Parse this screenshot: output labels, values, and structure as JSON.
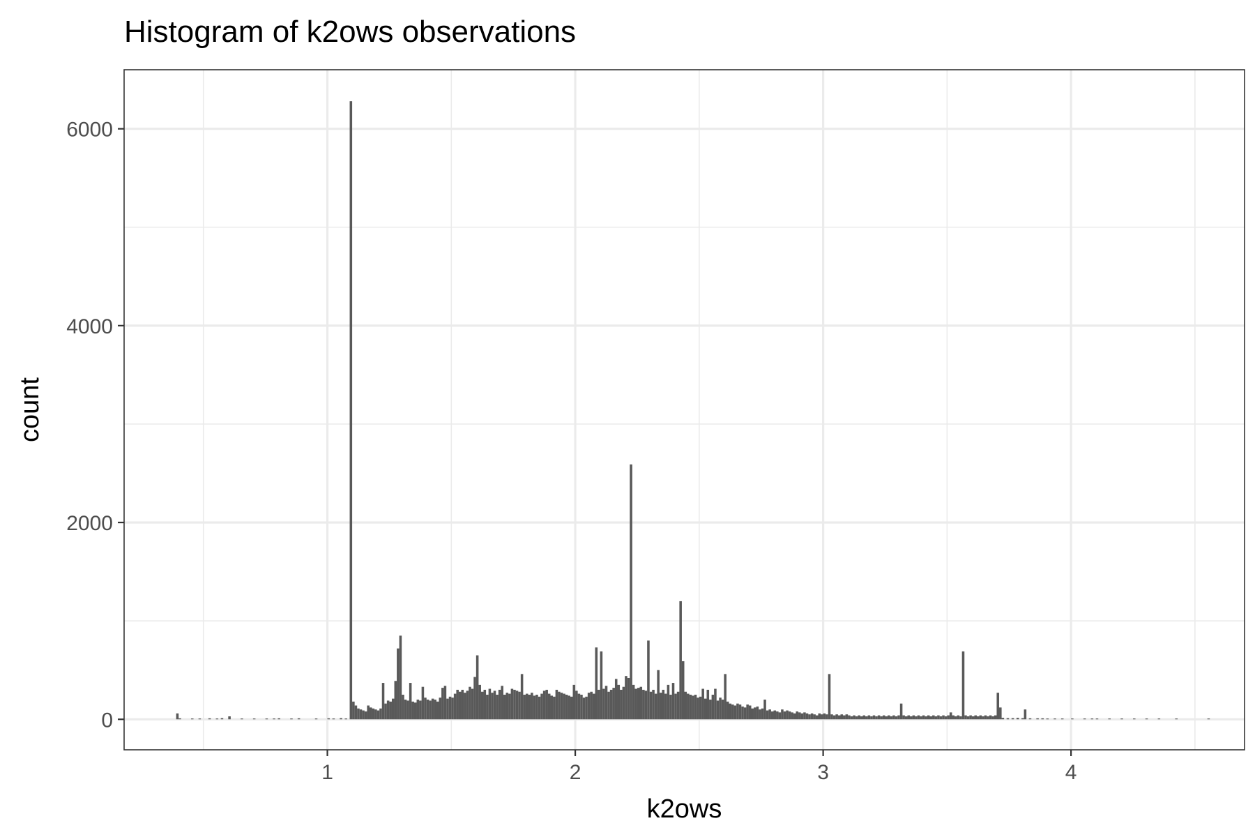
{
  "chart_data": {
    "type": "bar",
    "subtype": "histogram",
    "title": "Histogram of k2ows observations",
    "xlabel": "k2ows",
    "ylabel": "count",
    "xlim": [
      0.18,
      4.7
    ],
    "ylim": [
      -310,
      6600
    ],
    "x_ticks": [
      1,
      2,
      3,
      4
    ],
    "y_ticks": [
      0,
      2000,
      4000,
      6000
    ],
    "x_minor_ticks": [
      0.5,
      1.5,
      2.5,
      3.5,
      4.5
    ],
    "y_minor_ticks": [
      1000,
      3000,
      5000
    ],
    "bin_width": 0.01,
    "bar_color": "#595959",
    "grid": true,
    "bins": [
      [
        0.39,
        60
      ],
      [
        0.4,
        10
      ],
      [
        0.45,
        8
      ],
      [
        0.48,
        8
      ],
      [
        0.52,
        10
      ],
      [
        0.55,
        8
      ],
      [
        0.57,
        12
      ],
      [
        0.6,
        30
      ],
      [
        0.65,
        8
      ],
      [
        0.7,
        8
      ],
      [
        0.75,
        8
      ],
      [
        0.78,
        8
      ],
      [
        0.8,
        10
      ],
      [
        0.85,
        8
      ],
      [
        0.88,
        10
      ],
      [
        0.95,
        8
      ],
      [
        1.0,
        10
      ],
      [
        1.02,
        8
      ],
      [
        1.05,
        12
      ],
      [
        1.07,
        8
      ],
      [
        1.09,
        6280
      ],
      [
        1.1,
        180
      ],
      [
        1.11,
        140
      ],
      [
        1.12,
        110
      ],
      [
        1.13,
        100
      ],
      [
        1.14,
        90
      ],
      [
        1.15,
        80
      ],
      [
        1.16,
        140
      ],
      [
        1.17,
        120
      ],
      [
        1.18,
        110
      ],
      [
        1.19,
        100
      ],
      [
        1.2,
        90
      ],
      [
        1.21,
        110
      ],
      [
        1.22,
        370
      ],
      [
        1.23,
        160
      ],
      [
        1.24,
        190
      ],
      [
        1.25,
        180
      ],
      [
        1.26,
        210
      ],
      [
        1.27,
        390
      ],
      [
        1.28,
        720
      ],
      [
        1.29,
        850
      ],
      [
        1.3,
        250
      ],
      [
        1.31,
        200
      ],
      [
        1.32,
        190
      ],
      [
        1.33,
        370
      ],
      [
        1.34,
        180
      ],
      [
        1.35,
        170
      ],
      [
        1.36,
        200
      ],
      [
        1.37,
        190
      ],
      [
        1.38,
        330
      ],
      [
        1.39,
        220
      ],
      [
        1.4,
        200
      ],
      [
        1.41,
        190
      ],
      [
        1.42,
        210
      ],
      [
        1.43,
        200
      ],
      [
        1.44,
        180
      ],
      [
        1.45,
        220
      ],
      [
        1.46,
        320
      ],
      [
        1.47,
        340
      ],
      [
        1.48,
        210
      ],
      [
        1.49,
        230
      ],
      [
        1.5,
        220
      ],
      [
        1.51,
        260
      ],
      [
        1.52,
        300
      ],
      [
        1.53,
        280
      ],
      [
        1.54,
        300
      ],
      [
        1.55,
        270
      ],
      [
        1.56,
        290
      ],
      [
        1.57,
        330
      ],
      [
        1.58,
        310
      ],
      [
        1.59,
        430
      ],
      [
        1.6,
        650
      ],
      [
        1.61,
        350
      ],
      [
        1.62,
        280
      ],
      [
        1.63,
        300
      ],
      [
        1.64,
        250
      ],
      [
        1.65,
        310
      ],
      [
        1.66,
        270
      ],
      [
        1.67,
        290
      ],
      [
        1.68,
        250
      ],
      [
        1.69,
        300
      ],
      [
        1.7,
        340
      ],
      [
        1.71,
        250
      ],
      [
        1.72,
        270
      ],
      [
        1.73,
        260
      ],
      [
        1.74,
        310
      ],
      [
        1.75,
        300
      ],
      [
        1.76,
        290
      ],
      [
        1.77,
        280
      ],
      [
        1.78,
        460
      ],
      [
        1.79,
        250
      ],
      [
        1.8,
        260
      ],
      [
        1.81,
        250
      ],
      [
        1.82,
        270
      ],
      [
        1.83,
        240
      ],
      [
        1.84,
        250
      ],
      [
        1.85,
        230
      ],
      [
        1.86,
        260
      ],
      [
        1.87,
        290
      ],
      [
        1.88,
        300
      ],
      [
        1.89,
        260
      ],
      [
        1.9,
        240
      ],
      [
        1.91,
        230
      ],
      [
        1.92,
        300
      ],
      [
        1.93,
        280
      ],
      [
        1.94,
        270
      ],
      [
        1.95,
        260
      ],
      [
        1.96,
        250
      ],
      [
        1.97,
        240
      ],
      [
        1.98,
        230
      ],
      [
        1.99,
        350
      ],
      [
        2.0,
        290
      ],
      [
        2.01,
        260
      ],
      [
        2.02,
        250
      ],
      [
        2.03,
        220
      ],
      [
        2.04,
        230
      ],
      [
        2.05,
        270
      ],
      [
        2.06,
        280
      ],
      [
        2.07,
        260
      ],
      [
        2.08,
        730
      ],
      [
        2.09,
        300
      ],
      [
        2.1,
        690
      ],
      [
        2.11,
        310
      ],
      [
        2.12,
        340
      ],
      [
        2.13,
        280
      ],
      [
        2.14,
        300
      ],
      [
        2.15,
        320
      ],
      [
        2.16,
        410
      ],
      [
        2.17,
        350
      ],
      [
        2.18,
        300
      ],
      [
        2.19,
        330
      ],
      [
        2.2,
        440
      ],
      [
        2.21,
        420
      ],
      [
        2.22,
        2590
      ],
      [
        2.23,
        350
      ],
      [
        2.24,
        310
      ],
      [
        2.25,
        320
      ],
      [
        2.26,
        330
      ],
      [
        2.27,
        300
      ],
      [
        2.28,
        290
      ],
      [
        2.29,
        800
      ],
      [
        2.3,
        280
      ],
      [
        2.31,
        300
      ],
      [
        2.32,
        260
      ],
      [
        2.33,
        500
      ],
      [
        2.34,
        270
      ],
      [
        2.35,
        300
      ],
      [
        2.36,
        260
      ],
      [
        2.37,
        350
      ],
      [
        2.38,
        250
      ],
      [
        2.39,
        370
      ],
      [
        2.4,
        260
      ],
      [
        2.41,
        280
      ],
      [
        2.42,
        1200
      ],
      [
        2.43,
        590
      ],
      [
        2.44,
        280
      ],
      [
        2.45,
        260
      ],
      [
        2.46,
        250
      ],
      [
        2.47,
        240
      ],
      [
        2.48,
        250
      ],
      [
        2.49,
        220
      ],
      [
        2.5,
        230
      ],
      [
        2.51,
        310
      ],
      [
        2.52,
        210
      ],
      [
        2.53,
        300
      ],
      [
        2.54,
        200
      ],
      [
        2.55,
        250
      ],
      [
        2.56,
        310
      ],
      [
        2.57,
        190
      ],
      [
        2.58,
        220
      ],
      [
        2.59,
        200
      ],
      [
        2.6,
        460
      ],
      [
        2.61,
        180
      ],
      [
        2.62,
        160
      ],
      [
        2.63,
        150
      ],
      [
        2.64,
        140
      ],
      [
        2.65,
        160
      ],
      [
        2.66,
        150
      ],
      [
        2.67,
        130
      ],
      [
        2.68,
        120
      ],
      [
        2.69,
        150
      ],
      [
        2.7,
        140
      ],
      [
        2.71,
        110
      ],
      [
        2.72,
        120
      ],
      [
        2.73,
        130
      ],
      [
        2.74,
        100
      ],
      [
        2.75,
        110
      ],
      [
        2.76,
        200
      ],
      [
        2.77,
        90
      ],
      [
        2.78,
        100
      ],
      [
        2.79,
        80
      ],
      [
        2.8,
        90
      ],
      [
        2.81,
        80
      ],
      [
        2.82,
        70
      ],
      [
        2.83,
        100
      ],
      [
        2.84,
        80
      ],
      [
        2.85,
        90
      ],
      [
        2.86,
        80
      ],
      [
        2.87,
        70
      ],
      [
        2.88,
        60
      ],
      [
        2.89,
        80
      ],
      [
        2.9,
        70
      ],
      [
        2.91,
        60
      ],
      [
        2.92,
        70
      ],
      [
        2.93,
        60
      ],
      [
        2.94,
        50
      ],
      [
        2.95,
        60
      ],
      [
        2.96,
        50
      ],
      [
        2.97,
        40
      ],
      [
        2.98,
        60
      ],
      [
        2.99,
        50
      ],
      [
        3.0,
        60
      ],
      [
        3.01,
        50
      ],
      [
        3.02,
        460
      ],
      [
        3.03,
        50
      ],
      [
        3.04,
        40
      ],
      [
        3.05,
        50
      ],
      [
        3.06,
        40
      ],
      [
        3.07,
        50
      ],
      [
        3.08,
        40
      ],
      [
        3.09,
        50
      ],
      [
        3.1,
        40
      ],
      [
        3.11,
        30
      ],
      [
        3.12,
        40
      ],
      [
        3.13,
        30
      ],
      [
        3.14,
        40
      ],
      [
        3.15,
        30
      ],
      [
        3.16,
        40
      ],
      [
        3.17,
        30
      ],
      [
        3.18,
        40
      ],
      [
        3.19,
        30
      ],
      [
        3.2,
        40
      ],
      [
        3.21,
        30
      ],
      [
        3.22,
        40
      ],
      [
        3.23,
        30
      ],
      [
        3.24,
        40
      ],
      [
        3.25,
        30
      ],
      [
        3.26,
        40
      ],
      [
        3.27,
        30
      ],
      [
        3.28,
        40
      ],
      [
        3.29,
        30
      ],
      [
        3.3,
        40
      ],
      [
        3.31,
        160
      ],
      [
        3.32,
        40
      ],
      [
        3.33,
        30
      ],
      [
        3.34,
        40
      ],
      [
        3.35,
        30
      ],
      [
        3.36,
        40
      ],
      [
        3.37,
        30
      ],
      [
        3.38,
        40
      ],
      [
        3.39,
        30
      ],
      [
        3.4,
        40
      ],
      [
        3.41,
        30
      ],
      [
        3.42,
        40
      ],
      [
        3.43,
        30
      ],
      [
        3.44,
        40
      ],
      [
        3.45,
        30
      ],
      [
        3.46,
        40
      ],
      [
        3.47,
        30
      ],
      [
        3.48,
        40
      ],
      [
        3.49,
        30
      ],
      [
        3.5,
        40
      ],
      [
        3.51,
        70
      ],
      [
        3.52,
        40
      ],
      [
        3.53,
        30
      ],
      [
        3.54,
        40
      ],
      [
        3.55,
        30
      ],
      [
        3.56,
        690
      ],
      [
        3.57,
        40
      ],
      [
        3.58,
        30
      ],
      [
        3.59,
        40
      ],
      [
        3.6,
        30
      ],
      [
        3.61,
        40
      ],
      [
        3.62,
        30
      ],
      [
        3.63,
        40
      ],
      [
        3.64,
        30
      ],
      [
        3.65,
        40
      ],
      [
        3.66,
        30
      ],
      [
        3.67,
        40
      ],
      [
        3.68,
        30
      ],
      [
        3.69,
        40
      ],
      [
        3.7,
        270
      ],
      [
        3.71,
        120
      ],
      [
        3.72,
        15
      ],
      [
        3.74,
        12
      ],
      [
        3.76,
        12
      ],
      [
        3.78,
        15
      ],
      [
        3.8,
        12
      ],
      [
        3.81,
        100
      ],
      [
        3.83,
        10
      ],
      [
        3.86,
        10
      ],
      [
        3.88,
        10
      ],
      [
        3.9,
        8
      ],
      [
        3.93,
        8
      ],
      [
        3.96,
        8
      ],
      [
        4.0,
        8
      ],
      [
        4.05,
        8
      ],
      [
        4.08,
        8
      ],
      [
        4.1,
        8
      ],
      [
        4.15,
        8
      ],
      [
        4.2,
        8
      ],
      [
        4.25,
        8
      ],
      [
        4.3,
        8
      ],
      [
        4.35,
        8
      ],
      [
        4.42,
        8
      ],
      [
        4.55,
        8
      ]
    ]
  }
}
